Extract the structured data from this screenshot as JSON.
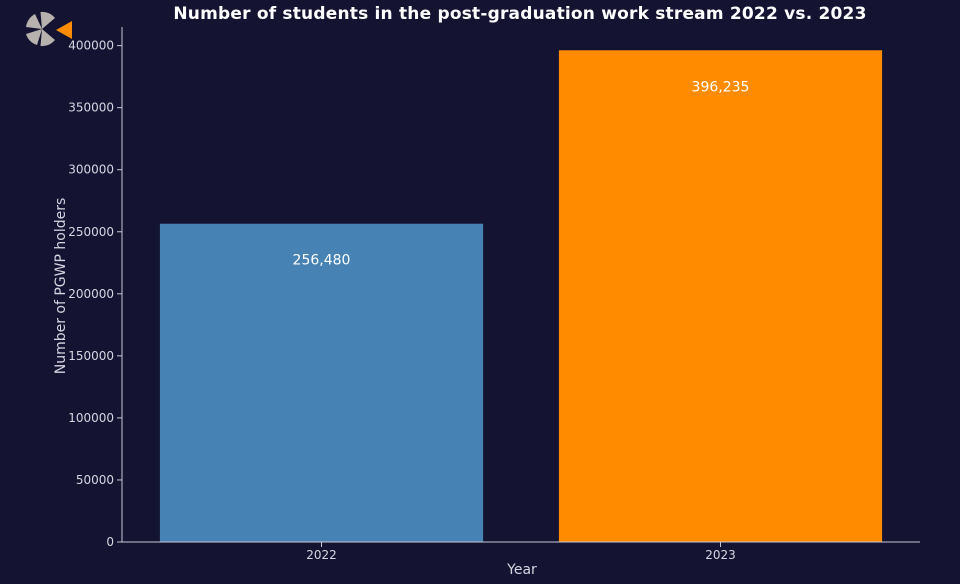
{
  "colors": {
    "background": "#141332",
    "axis": "#c9c9d4",
    "bar_2022": "#4682b4",
    "bar_2023": "#ff8c00",
    "logo_petal": "#b7b2ad",
    "logo_accent": "#ff8c00"
  },
  "logo": {
    "icon": "segmented-circle-logo-icon"
  },
  "chart_data": {
    "type": "bar",
    "title": "Number of students in the post-graduation work stream 2022 vs. 2023",
    "xlabel": "Year",
    "ylabel": "Number of PGWP holders",
    "categories": [
      "2022",
      "2023"
    ],
    "values": [
      256480,
      396235
    ],
    "data_labels": [
      "256,480",
      "396,235"
    ],
    "bar_colors": [
      "#4682b4",
      "#ff8c00"
    ],
    "ylim": [
      0,
      415000
    ],
    "yticks": [
      0,
      50000,
      100000,
      150000,
      200000,
      250000,
      300000,
      350000,
      400000
    ],
    "ytick_labels": [
      "0",
      "50000",
      "100000",
      "150000",
      "200000",
      "250000",
      "300000",
      "350000",
      "400000"
    ],
    "grid": false,
    "legend": "none"
  }
}
